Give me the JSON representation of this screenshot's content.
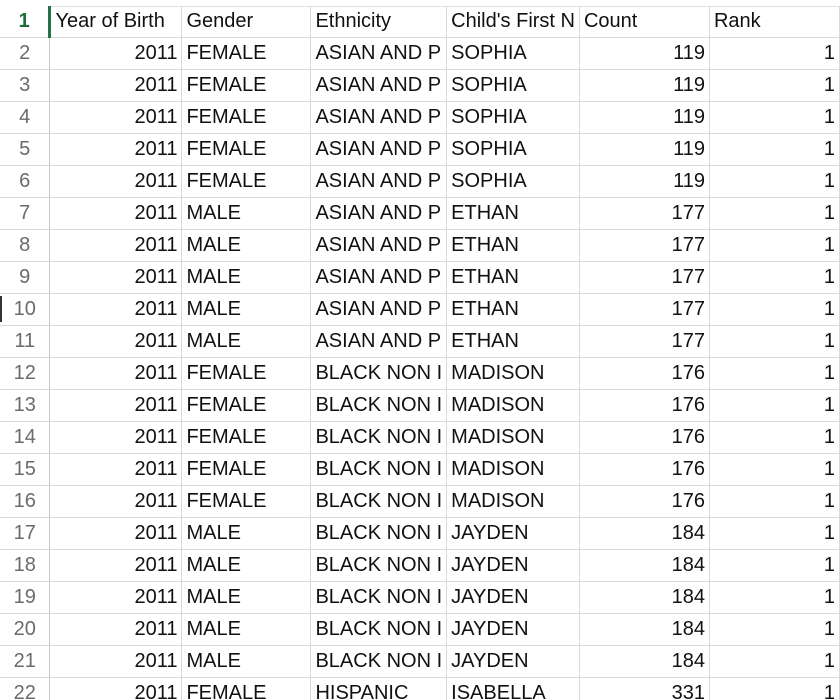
{
  "headers": [
    "Year of Birth",
    "Gender",
    "Ethnicity",
    "Child's First N",
    "Count",
    "Rank"
  ],
  "row_numbers": [
    "1",
    "2",
    "3",
    "4",
    "5",
    "6",
    "7",
    "8",
    "9",
    "10",
    "11",
    "12",
    "13",
    "14",
    "15",
    "16",
    "17",
    "18",
    "19",
    "20",
    "21",
    "22"
  ],
  "rows": [
    [
      "2011",
      "FEMALE",
      "ASIAN AND P",
      "SOPHIA",
      "119",
      "1"
    ],
    [
      "2011",
      "FEMALE",
      "ASIAN AND P",
      "SOPHIA",
      "119",
      "1"
    ],
    [
      "2011",
      "FEMALE",
      "ASIAN AND P",
      "SOPHIA",
      "119",
      "1"
    ],
    [
      "2011",
      "FEMALE",
      "ASIAN AND P",
      "SOPHIA",
      "119",
      "1"
    ],
    [
      "2011",
      "FEMALE",
      "ASIAN AND P",
      "SOPHIA",
      "119",
      "1"
    ],
    [
      "2011",
      "MALE",
      "ASIAN AND P",
      "ETHAN",
      "177",
      "1"
    ],
    [
      "2011",
      "MALE",
      "ASIAN AND P",
      "ETHAN",
      "177",
      "1"
    ],
    [
      "2011",
      "MALE",
      "ASIAN AND P",
      "ETHAN",
      "177",
      "1"
    ],
    [
      "2011",
      "MALE",
      "ASIAN AND P",
      "ETHAN",
      "177",
      "1"
    ],
    [
      "2011",
      "MALE",
      "ASIAN AND P",
      "ETHAN",
      "177",
      "1"
    ],
    [
      "2011",
      "FEMALE",
      "BLACK NON I",
      "MADISON",
      "176",
      "1"
    ],
    [
      "2011",
      "FEMALE",
      "BLACK NON I",
      "MADISON",
      "176",
      "1"
    ],
    [
      "2011",
      "FEMALE",
      "BLACK NON I",
      "MADISON",
      "176",
      "1"
    ],
    [
      "2011",
      "FEMALE",
      "BLACK NON I",
      "MADISON",
      "176",
      "1"
    ],
    [
      "2011",
      "FEMALE",
      "BLACK NON I",
      "MADISON",
      "176",
      "1"
    ],
    [
      "2011",
      "MALE",
      "BLACK NON I",
      "JAYDEN",
      "184",
      "1"
    ],
    [
      "2011",
      "MALE",
      "BLACK NON I",
      "JAYDEN",
      "184",
      "1"
    ],
    [
      "2011",
      "MALE",
      "BLACK NON I",
      "JAYDEN",
      "184",
      "1"
    ],
    [
      "2011",
      "MALE",
      "BLACK NON I",
      "JAYDEN",
      "184",
      "1"
    ],
    [
      "2011",
      "MALE",
      "BLACK NON I",
      "JAYDEN",
      "184",
      "1"
    ],
    [
      "2011",
      "FEMALE",
      "HISPANIC",
      "ISABELLA",
      "331",
      "1"
    ]
  ],
  "colors": {
    "active_row_header": "#1e6b3b",
    "active_accent": "#217346",
    "gridline": "#d9d9d9",
    "row_number_text": "#6b6b6b"
  }
}
